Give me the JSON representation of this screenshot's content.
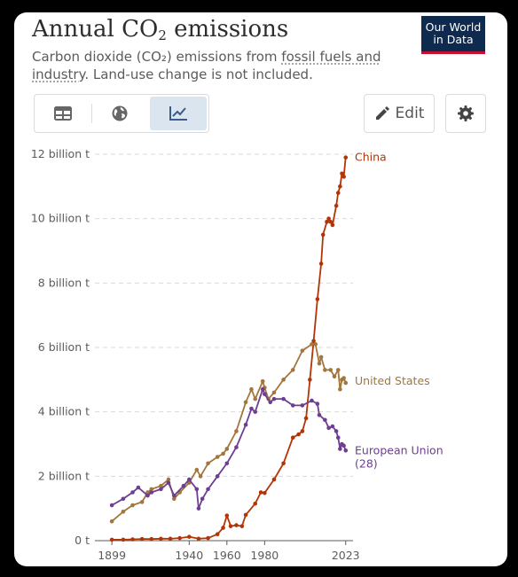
{
  "header": {
    "title_main": "Annual CO",
    "title_sub": "2",
    "title_tail": " emissions",
    "subtitle_before": "Carbon dioxide (CO₂) emissions from ",
    "subtitle_link": "fossil fuels and industry",
    "subtitle_after": ". Land-use change is not included.",
    "logo_line1": "Our World",
    "logo_line2": "in Data"
  },
  "toolbar": {
    "tabs": [
      "table",
      "map",
      "chart"
    ],
    "active_tab": "chart",
    "edit_label": "Edit"
  },
  "colors": {
    "China": "#b13507",
    "United States": "#a2763c",
    "European Union (28)": "#6d3e91",
    "grid": "#d9d9d9",
    "axis": "#5b5b5b"
  },
  "chart_data": {
    "type": "line",
    "title": "Annual CO₂ emissions",
    "xlabel": "",
    "ylabel": "",
    "xlim": [
      1890,
      2025
    ],
    "ylim": [
      0,
      12
    ],
    "x_ticks": [
      1899,
      1940,
      1960,
      1980,
      2023
    ],
    "y_ticks": [
      0,
      2,
      4,
      6,
      8,
      10,
      12
    ],
    "y_tick_labels": [
      "0 t",
      "2 billion t",
      "4 billion t",
      "6 billion t",
      "8 billion t",
      "10 billion t",
      "12 billion t"
    ],
    "grid": true,
    "legend": "end-of-line labels",
    "series": [
      {
        "name": "China",
        "label_lines": [
          "China"
        ],
        "points": [
          [
            1899,
            0.03
          ],
          [
            1905,
            0.03
          ],
          [
            1910,
            0.04
          ],
          [
            1915,
            0.05
          ],
          [
            1920,
            0.05
          ],
          [
            1925,
            0.06
          ],
          [
            1930,
            0.06
          ],
          [
            1935,
            0.08
          ],
          [
            1940,
            0.12
          ],
          [
            1945,
            0.06
          ],
          [
            1950,
            0.08
          ],
          [
            1955,
            0.2
          ],
          [
            1958,
            0.4
          ],
          [
            1960,
            0.78
          ],
          [
            1962,
            0.45
          ],
          [
            1965,
            0.48
          ],
          [
            1968,
            0.45
          ],
          [
            1970,
            0.8
          ],
          [
            1975,
            1.15
          ],
          [
            1978,
            1.5
          ],
          [
            1980,
            1.48
          ],
          [
            1985,
            1.9
          ],
          [
            1990,
            2.4
          ],
          [
            1995,
            3.2
          ],
          [
            1998,
            3.3
          ],
          [
            2000,
            3.4
          ],
          [
            2002,
            3.8
          ],
          [
            2004,
            5.0
          ],
          [
            2006,
            6.2
          ],
          [
            2008,
            7.5
          ],
          [
            2010,
            8.6
          ],
          [
            2011,
            9.5
          ],
          [
            2013,
            9.9
          ],
          [
            2014,
            10.0
          ],
          [
            2015,
            9.9
          ],
          [
            2016,
            9.8
          ],
          [
            2018,
            10.4
          ],
          [
            2019,
            10.8
          ],
          [
            2020,
            11.0
          ],
          [
            2021,
            11.4
          ],
          [
            2022,
            11.3
          ],
          [
            2023,
            11.9
          ]
        ]
      },
      {
        "name": "United States",
        "label_lines": [
          "United States"
        ],
        "points": [
          [
            1899,
            0.6
          ],
          [
            1905,
            0.9
          ],
          [
            1910,
            1.1
          ],
          [
            1915,
            1.2
          ],
          [
            1918,
            1.5
          ],
          [
            1920,
            1.6
          ],
          [
            1925,
            1.7
          ],
          [
            1929,
            1.9
          ],
          [
            1932,
            1.3
          ],
          [
            1935,
            1.5
          ],
          [
            1940,
            1.8
          ],
          [
            1944,
            2.2
          ],
          [
            1946,
            2.0
          ],
          [
            1950,
            2.4
          ],
          [
            1955,
            2.6
          ],
          [
            1958,
            2.7
          ],
          [
            1960,
            2.85
          ],
          [
            1965,
            3.4
          ],
          [
            1970,
            4.3
          ],
          [
            1973,
            4.7
          ],
          [
            1975,
            4.4
          ],
          [
            1979,
            4.95
          ],
          [
            1980,
            4.75
          ],
          [
            1982,
            4.4
          ],
          [
            1985,
            4.6
          ],
          [
            1990,
            5.0
          ],
          [
            1995,
            5.3
          ],
          [
            2000,
            5.9
          ],
          [
            2005,
            6.1
          ],
          [
            2007,
            6.1
          ],
          [
            2009,
            5.5
          ],
          [
            2010,
            5.7
          ],
          [
            2012,
            5.3
          ],
          [
            2015,
            5.3
          ],
          [
            2017,
            5.1
          ],
          [
            2019,
            5.3
          ],
          [
            2020,
            4.7
          ],
          [
            2021,
            5.0
          ],
          [
            2022,
            5.05
          ],
          [
            2023,
            4.9
          ]
        ]
      },
      {
        "name": "European Union (28)",
        "label_lines": [
          "European Union",
          "(28)"
        ],
        "points": [
          [
            1899,
            1.1
          ],
          [
            1905,
            1.3
          ],
          [
            1910,
            1.5
          ],
          [
            1913,
            1.65
          ],
          [
            1918,
            1.4
          ],
          [
            1920,
            1.5
          ],
          [
            1925,
            1.6
          ],
          [
            1929,
            1.8
          ],
          [
            1932,
            1.4
          ],
          [
            1937,
            1.7
          ],
          [
            1940,
            1.9
          ],
          [
            1944,
            1.6
          ],
          [
            1945,
            1.0
          ],
          [
            1947,
            1.3
          ],
          [
            1950,
            1.6
          ],
          [
            1955,
            2.0
          ],
          [
            1960,
            2.4
          ],
          [
            1965,
            2.9
          ],
          [
            1970,
            3.6
          ],
          [
            1973,
            4.1
          ],
          [
            1975,
            4.0
          ],
          [
            1979,
            4.7
          ],
          [
            1980,
            4.55
          ],
          [
            1983,
            4.3
          ],
          [
            1985,
            4.4
          ],
          [
            1990,
            4.4
          ],
          [
            1995,
            4.2
          ],
          [
            2000,
            4.2
          ],
          [
            2005,
            4.35
          ],
          [
            2008,
            4.25
          ],
          [
            2009,
            3.9
          ],
          [
            2012,
            3.75
          ],
          [
            2014,
            3.5
          ],
          [
            2016,
            3.55
          ],
          [
            2018,
            3.4
          ],
          [
            2019,
            3.2
          ],
          [
            2020,
            2.85
          ],
          [
            2021,
            3.0
          ],
          [
            2022,
            2.95
          ],
          [
            2023,
            2.8
          ]
        ]
      }
    ]
  }
}
